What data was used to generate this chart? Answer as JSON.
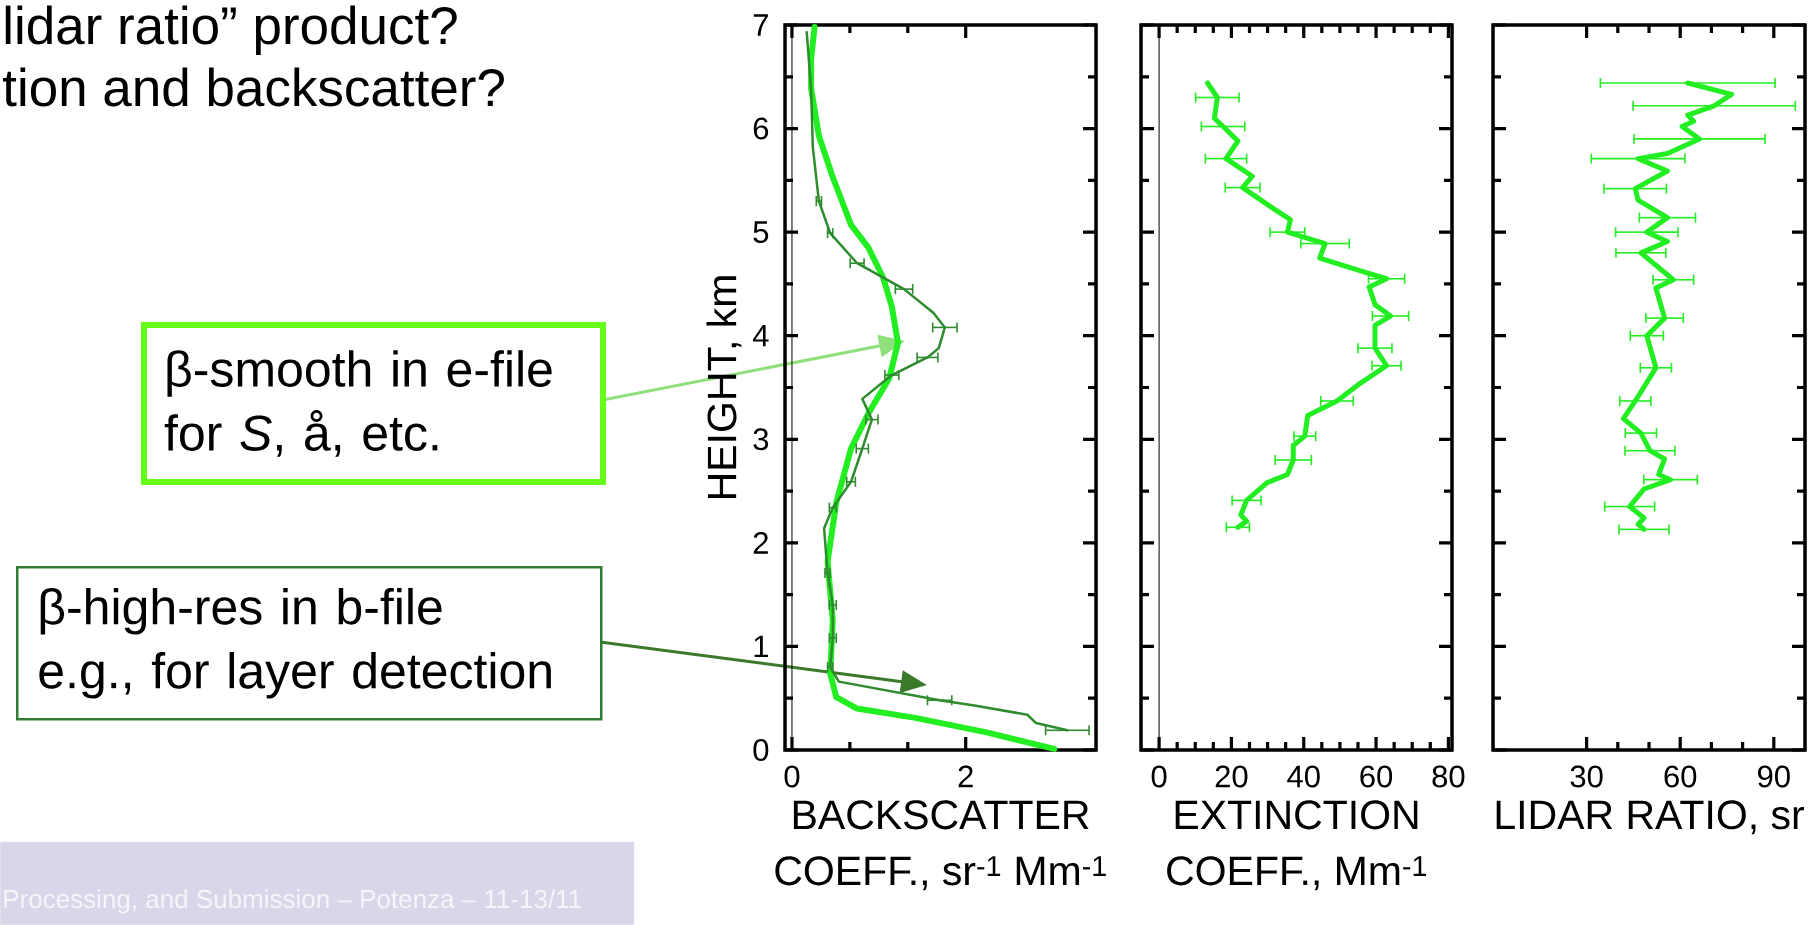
{
  "chart_data": [
    {
      "type": "line",
      "xlabel": "BACKSCATTER\nCOEFF., sr$^{-1}$ Mm$^{-1}$",
      "ylabel": "HEIGHT, km",
      "xlim": [
        -0.08,
        3.5
      ],
      "xticks": [
        0,
        2
      ],
      "ylim": [
        0,
        7
      ],
      "yticks": [
        0,
        1,
        2,
        3,
        4,
        5,
        6,
        7
      ],
      "ref_lines": [
        {
          "axis": "x",
          "value": 0
        }
      ],
      "series": [
        {
          "color": "#22ee22",
          "x": [
            3.02,
            2.24,
            1.42,
            0.75,
            0.51,
            0.44,
            0.47,
            0.41,
            0.51,
            0.68,
            0.88,
            1.12,
            1.22,
            1.15,
            1.05,
            0.88,
            0.68,
            0.47,
            0.31,
            0.22,
            0.22,
            0.26
          ],
          "values": [
            0.01,
            0.17,
            0.31,
            0.4,
            0.51,
            0.74,
            1.25,
            1.82,
            2.39,
            2.91,
            3.25,
            3.59,
            3.93,
            4.28,
            4.56,
            4.85,
            5.07,
            5.53,
            5.93,
            6.39,
            6.67,
            6.98
          ]
        },
        {
          "color": "#2e8b2e",
          "x": [
            0.17,
            0.22,
            0.24,
            0.31,
            0.44,
            0.75,
            1.29,
            1.63,
            1.76,
            1.69,
            1.56,
            1.15,
            0.81,
            0.92,
            0.81,
            0.68,
            0.47,
            0.37,
            0.41,
            0.47,
            0.47,
            0.44,
            0.54,
            1.7,
            2.1,
            2.71,
            2.81,
            3.17
          ],
          "values": [
            6.93,
            6.39,
            5.82,
            5.3,
            4.99,
            4.7,
            4.45,
            4.22,
            4.08,
            3.88,
            3.79,
            3.62,
            3.39,
            3.19,
            2.91,
            2.59,
            2.34,
            2.14,
            1.71,
            1.4,
            1.08,
            0.8,
            0.66,
            0.48,
            0.43,
            0.34,
            0.26,
            0.19
          ],
          "xerrors": [
            null,
            null,
            null,
            0.03,
            0.03,
            0.08,
            0.1,
            null,
            0.14,
            null,
            0.12,
            0.08,
            null,
            0.07,
            0.07,
            0.05,
            0.04,
            null,
            0.03,
            0.04,
            0.04,
            0.03,
            null,
            0.14,
            null,
            null,
            null,
            0.25
          ]
        }
      ],
      "annotations": [
        "β-smooth in e-file\nfor *S*, å, etc.",
        "β-high-res in b-file\ne.g., for layer detection",
        "lidar ratio” product?",
        "tion and backscatter?",
        "Processing, and Submission – Potenza – 11-13/11"
      ]
    },
    {
      "type": "line",
      "xlabel": "EXTINCTION\nCOEFF., Mm$^{-1}$",
      "xlim": [
        -5,
        81
      ],
      "xticks": [
        0,
        20,
        40,
        60,
        80
      ],
      "ylim": [
        0,
        7
      ],
      "yticks": [
        0,
        1,
        2,
        3,
        4,
        5,
        6,
        7
      ],
      "tick_labels": "x",
      "ref_lines": [
        {
          "axis": "x",
          "value": 0
        }
      ],
      "series": [
        {
          "color": "#22ee22",
          "x": [
            13.4,
            16.1,
            15.3,
            17.7,
            21.8,
            18.5,
            25.8,
            23.1,
            31.5,
            36.3,
            35.5,
            45.9,
            44.4,
            57.3,
            62.9,
            58.1,
            59.7,
            64.0,
            59.7,
            59.7,
            62.9,
            55.6,
            49.2,
            41.1,
            40.3,
            37.1,
            37.1,
            35.5,
            29.8,
            24.2,
            22.6,
            24.2,
            21.8
          ],
          "values": [
            6.44,
            6.3,
            6.1,
            6.02,
            5.88,
            5.71,
            5.54,
            5.43,
            5.23,
            5.12,
            5.0,
            4.89,
            4.75,
            4.61,
            4.55,
            4.47,
            4.3,
            4.19,
            4.1,
            3.88,
            3.71,
            3.54,
            3.37,
            3.23,
            3.03,
            2.94,
            2.8,
            2.66,
            2.58,
            2.41,
            2.27,
            2.21,
            2.15
          ],
          "xerrors": [
            null,
            6,
            null,
            6,
            null,
            5.7,
            null,
            4.8,
            null,
            null,
            4.8,
            6.7,
            null,
            null,
            5,
            null,
            null,
            5,
            null,
            4.7,
            4,
            null,
            4.5,
            null,
            3,
            null,
            5,
            null,
            null,
            4,
            null,
            null,
            3.2
          ]
        }
      ]
    },
    {
      "type": "line",
      "xlabel": "LIDAR RATIO, sr",
      "xlim": [
        0,
        100
      ],
      "xticks": [
        30,
        60,
        90
      ],
      "ylim": [
        0,
        7
      ],
      "yticks": [
        0,
        1,
        2,
        3,
        4,
        5,
        6,
        7
      ],
      "tick_labels": "x",
      "series": [
        {
          "color": "#22ee22",
          "x": [
            62.4,
            76.5,
            70.9,
            62.4,
            64.3,
            60.6,
            66.2,
            55.9,
            46.5,
            55.9,
            45.6,
            46.5,
            55.9,
            49.3,
            55.9,
            47.4,
            57.8,
            52.2,
            55.0,
            49.3,
            52.2,
            45.6,
            41.8,
            47.4,
            50.3,
            55.0,
            53.1,
            56.9,
            48.4,
            43.8,
            48.4,
            46.5,
            48.4
          ],
          "values": [
            6.44,
            6.33,
            6.22,
            6.13,
            6.07,
            6.02,
            5.9,
            5.76,
            5.71,
            5.59,
            5.42,
            5.31,
            5.14,
            5.0,
            4.91,
            4.8,
            4.54,
            4.46,
            4.17,
            4.0,
            3.69,
            3.37,
            3.2,
            3.06,
            2.89,
            2.81,
            2.66,
            2.61,
            2.52,
            2.35,
            2.24,
            2.18,
            2.13
          ],
          "xerrors": [
            28,
            null,
            26,
            null,
            null,
            null,
            21,
            null,
            15,
            null,
            10,
            null,
            9,
            10,
            null,
            8,
            6.5,
            null,
            6,
            5.3,
            5,
            5,
            null,
            5,
            8,
            null,
            null,
            8.6,
            null,
            8,
            null,
            null,
            8
          ]
        }
      ]
    }
  ]
}
